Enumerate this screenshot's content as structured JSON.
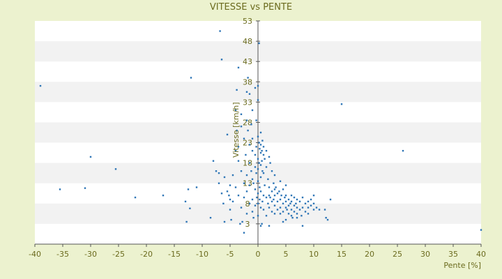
{
  "chart_data": {
    "type": "scatter",
    "title": "VITESSE vs PENTE",
    "xlabel": "Pente [%]",
    "ylabel": "Vitesse [km/h]",
    "xlim": [
      -40,
      40
    ],
    "ylim": [
      -2,
      53
    ],
    "x_ticks": [
      -40,
      -35,
      -30,
      -25,
      -20,
      -15,
      -10,
      -5,
      0,
      5,
      10,
      15,
      20,
      25,
      30,
      35,
      40
    ],
    "y_ticks": [
      3,
      8,
      13,
      18,
      23,
      28,
      33,
      38,
      43,
      48,
      53
    ],
    "grid": "horizontal bands",
    "colors": {
      "background": "#ecf2cf",
      "plot": "#ffffff",
      "band": "#f2f2f2",
      "point": "#2e75b6",
      "text": "#6b6b1e",
      "axis": "#555555"
    },
    "points": [
      [
        -39.0,
        37.0
      ],
      [
        -35.5,
        11.5
      ],
      [
        -31.0,
        11.8
      ],
      [
        -30.0,
        19.5
      ],
      [
        -25.5,
        16.5
      ],
      [
        -22.0,
        9.5
      ],
      [
        -17.0,
        10.0
      ],
      [
        -13.0,
        8.5
      ],
      [
        -12.8,
        3.5
      ],
      [
        -12.5,
        11.5
      ],
      [
        -12.2,
        6.8
      ],
      [
        -12.0,
        39.0
      ],
      [
        -11.0,
        12.0
      ],
      [
        -8.5,
        4.5
      ],
      [
        -8.0,
        18.5
      ],
      [
        -7.5,
        16.0
      ],
      [
        -7.0,
        15.5
      ],
      [
        -7.0,
        13.0
      ],
      [
        -6.8,
        50.5
      ],
      [
        -6.5,
        43.5
      ],
      [
        -6.5,
        10.5
      ],
      [
        -6.2,
        8.0
      ],
      [
        -6.0,
        14.5
      ],
      [
        -6.0,
        3.5
      ],
      [
        -5.5,
        25.0
      ],
      [
        -5.5,
        11.0
      ],
      [
        -5.2,
        10.0
      ],
      [
        -5.0,
        12.5
      ],
      [
        -5.0,
        9.0
      ],
      [
        -5.0,
        6.5
      ],
      [
        -4.8,
        4.0
      ],
      [
        -4.5,
        15.0
      ],
      [
        -4.5,
        8.5
      ],
      [
        -4.0,
        31.0
      ],
      [
        -4.0,
        21.0
      ],
      [
        -4.0,
        12.0
      ],
      [
        -3.8,
        36.0
      ],
      [
        -3.8,
        26.0
      ],
      [
        -3.5,
        41.5
      ],
      [
        -3.5,
        22.0
      ],
      [
        -3.5,
        18.5
      ],
      [
        -3.5,
        10.0
      ],
      [
        -3.2,
        3.0
      ],
      [
        -3.0,
        30.0
      ],
      [
        -3.0,
        27.0
      ],
      [
        -3.0,
        16.0
      ],
      [
        -3.0,
        7.0
      ],
      [
        -2.8,
        3.5
      ],
      [
        -2.5,
        24.0
      ],
      [
        -2.5,
        13.0
      ],
      [
        -2.5,
        9.5
      ],
      [
        -2.5,
        0.8
      ],
      [
        -2.2,
        20.0
      ],
      [
        -2.0,
        35.5
      ],
      [
        -2.0,
        28.5
      ],
      [
        -2.0,
        15.0
      ],
      [
        -2.0,
        11.0
      ],
      [
        -2.0,
        5.5
      ],
      [
        -1.8,
        39.0
      ],
      [
        -1.8,
        26.0
      ],
      [
        -1.5,
        35.0
      ],
      [
        -1.5,
        22.5
      ],
      [
        -1.5,
        18.0
      ],
      [
        -1.5,
        12.5
      ],
      [
        -1.5,
        8.0
      ],
      [
        -1.2,
        27.5
      ],
      [
        -1.2,
        16.0
      ],
      [
        -1.0,
        31.0
      ],
      [
        -1.0,
        24.0
      ],
      [
        -1.0,
        21.0
      ],
      [
        -1.0,
        14.0
      ],
      [
        -1.0,
        9.0
      ],
      [
        -1.0,
        6.0
      ],
      [
        -0.8,
        13.0
      ],
      [
        -0.8,
        4.5
      ],
      [
        -0.5,
        36.5
      ],
      [
        -0.5,
        20.0
      ],
      [
        -0.5,
        17.0
      ],
      [
        -0.5,
        11.5
      ],
      [
        -0.5,
        7.5
      ],
      [
        -0.3,
        28.5
      ],
      [
        -0.3,
        22.0
      ],
      [
        -0.3,
        15.5
      ],
      [
        -0.2,
        9.5
      ],
      [
        0.0,
        37.0
      ],
      [
        0.0,
        33.5
      ],
      [
        0.0,
        24.5
      ],
      [
        0.0,
        19.0
      ],
      [
        0.0,
        16.5
      ],
      [
        0.0,
        13.5
      ],
      [
        0.0,
        10.5
      ],
      [
        0.0,
        8.0
      ],
      [
        0.0,
        5.0
      ],
      [
        0.2,
        47.5
      ],
      [
        0.2,
        23.0
      ],
      [
        0.2,
        18.0
      ],
      [
        0.3,
        21.5
      ],
      [
        0.3,
        12.0
      ],
      [
        0.3,
        9.0
      ],
      [
        0.5,
        25.5
      ],
      [
        0.5,
        22.5
      ],
      [
        0.5,
        20.5
      ],
      [
        0.5,
        17.5
      ],
      [
        0.5,
        14.5
      ],
      [
        0.5,
        11.0
      ],
      [
        0.5,
        7.0
      ],
      [
        0.5,
        2.5
      ],
      [
        0.7,
        21.0
      ],
      [
        0.7,
        18.5
      ],
      [
        0.7,
        3.0
      ],
      [
        0.8,
        23.5
      ],
      [
        0.8,
        16.0
      ],
      [
        0.8,
        8.5
      ],
      [
        1.0,
        22.0
      ],
      [
        1.0,
        20.0
      ],
      [
        1.0,
        15.5
      ],
      [
        1.0,
        10.0
      ],
      [
        1.0,
        6.5
      ],
      [
        1.2,
        19.0
      ],
      [
        1.2,
        12.5
      ],
      [
        1.5,
        21.0
      ],
      [
        1.5,
        17.0
      ],
      [
        1.5,
        9.5
      ],
      [
        1.5,
        5.0
      ],
      [
        1.8,
        14.0
      ],
      [
        1.8,
        8.0
      ],
      [
        2.0,
        19.5
      ],
      [
        2.0,
        12.0
      ],
      [
        2.0,
        10.0
      ],
      [
        2.0,
        7.0
      ],
      [
        2.0,
        2.5
      ],
      [
        2.2,
        18.0
      ],
      [
        2.2,
        9.5
      ],
      [
        2.5,
        16.0
      ],
      [
        2.5,
        11.0
      ],
      [
        2.5,
        8.5
      ],
      [
        2.5,
        6.0
      ],
      [
        2.8,
        13.0
      ],
      [
        2.8,
        9.0
      ],
      [
        3.0,
        15.0
      ],
      [
        3.0,
        11.5
      ],
      [
        3.0,
        10.0
      ],
      [
        3.0,
        7.5
      ],
      [
        3.0,
        5.5
      ],
      [
        3.2,
        12.0
      ],
      [
        3.5,
        10.5
      ],
      [
        3.5,
        8.5
      ],
      [
        3.5,
        6.5
      ],
      [
        3.8,
        11.0
      ],
      [
        4.0,
        13.5
      ],
      [
        4.0,
        9.0
      ],
      [
        4.0,
        7.0
      ],
      [
        4.0,
        5.5
      ],
      [
        4.2,
        10.0
      ],
      [
        4.5,
        11.5
      ],
      [
        4.5,
        8.0
      ],
      [
        4.5,
        6.0
      ],
      [
        4.5,
        3.5
      ],
      [
        4.8,
        9.5
      ],
      [
        5.0,
        12.5
      ],
      [
        5.0,
        10.0
      ],
      [
        5.0,
        8.5
      ],
      [
        5.0,
        7.0
      ],
      [
        5.0,
        4.0
      ],
      [
        5.2,
        6.5
      ],
      [
        5.5,
        9.0
      ],
      [
        5.5,
        7.5
      ],
      [
        5.5,
        5.5
      ],
      [
        5.8,
        8.0
      ],
      [
        6.0,
        10.0
      ],
      [
        6.0,
        8.5
      ],
      [
        6.0,
        6.5
      ],
      [
        6.0,
        5.0
      ],
      [
        6.2,
        4.5
      ],
      [
        6.5,
        9.5
      ],
      [
        6.5,
        7.5
      ],
      [
        6.5,
        6.0
      ],
      [
        6.8,
        8.0
      ],
      [
        7.0,
        9.0
      ],
      [
        7.0,
        7.0
      ],
      [
        7.0,
        5.5
      ],
      [
        7.0,
        4.5
      ],
      [
        7.5,
        8.5
      ],
      [
        7.5,
        6.5
      ],
      [
        7.8,
        5.0
      ],
      [
        8.0,
        9.5
      ],
      [
        8.0,
        7.0
      ],
      [
        8.0,
        2.5
      ],
      [
        8.5,
        8.0
      ],
      [
        8.5,
        6.0
      ],
      [
        9.0,
        8.5
      ],
      [
        9.0,
        7.0
      ],
      [
        9.0,
        5.5
      ],
      [
        9.5,
        9.0
      ],
      [
        9.5,
        7.5
      ],
      [
        10.0,
        10.0
      ],
      [
        10.0,
        8.0
      ],
      [
        10.0,
        6.5
      ],
      [
        10.5,
        7.0
      ],
      [
        11.0,
        6.5
      ],
      [
        12.0,
        6.5
      ],
      [
        12.2,
        4.5
      ],
      [
        12.5,
        4.0
      ],
      [
        13.0,
        9.0
      ],
      [
        15.0,
        32.5
      ],
      [
        26.0,
        21.0
      ],
      [
        40.0,
        1.5
      ]
    ]
  }
}
